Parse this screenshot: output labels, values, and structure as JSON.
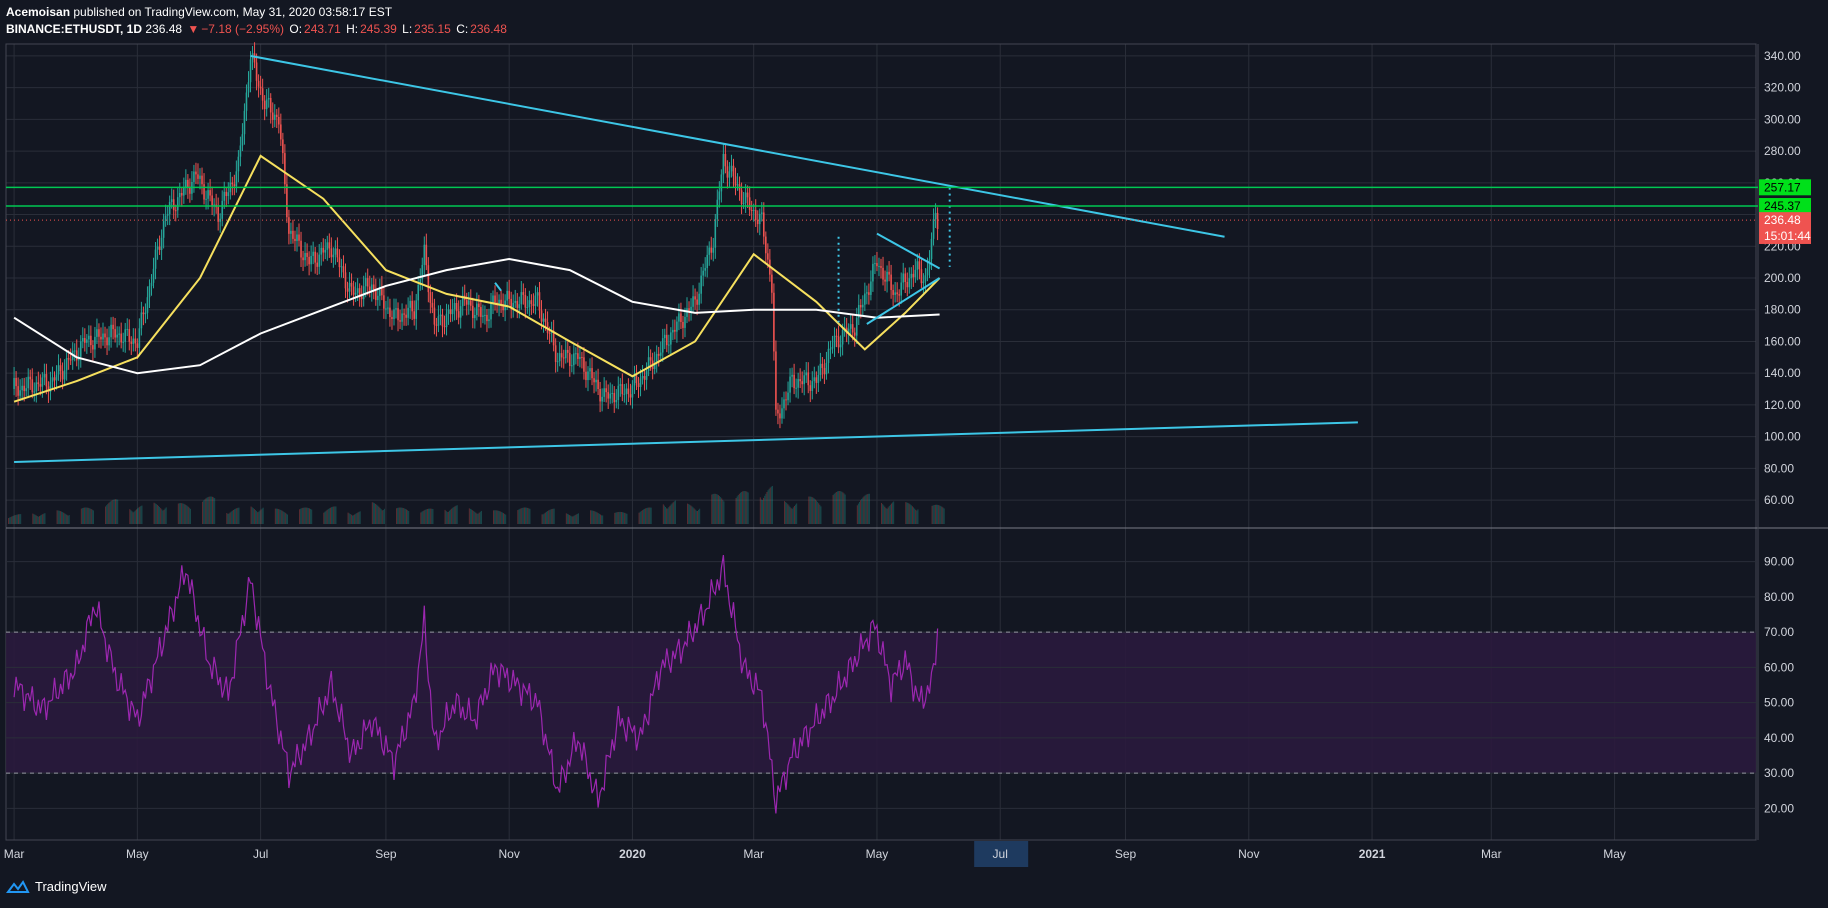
{
  "header": {
    "publisher": "Acemoisan",
    "published_text": "published on TradingView.com, May 31, 2020 03:58:17 EST",
    "symbol": "BINANCE:ETHUSDT, 1D",
    "last": "236.48",
    "change": "−7.18 (−2.95%)",
    "open_label": "O:",
    "open": "243.71",
    "high_label": "H:",
    "high": "245.39",
    "low_label": "L:",
    "low": "235.15",
    "close_label": "C:",
    "close": "236.48"
  },
  "footer": {
    "brand": "TradingView"
  },
  "colors": {
    "background": "#131722",
    "grid": "#2a2e39",
    "up": "#26a69a",
    "down": "#ef5350",
    "trendline": "#3dc6e6",
    "ma_yellow": "#f6e05e",
    "ma_white": "#ffffff",
    "green_level": "#00c853",
    "rsi": "#9c27b0",
    "rsi_band": "#2a1a3d"
  },
  "chart_data": [
    {
      "type": "candlestick",
      "title": "",
      "x_ticks": [
        "Mar",
        "May",
        "Jul",
        "Sep",
        "Nov",
        "2020",
        "Mar",
        "May",
        "Jul",
        "Sep",
        "Nov",
        "2021",
        "Mar",
        "May"
      ],
      "x_ticks_bold": [
        "2020",
        "2021"
      ],
      "y_ticks": [
        "340.00",
        "320.00",
        "300.00",
        "280.00",
        "260.00",
        "240.00",
        "220.00",
        "200.00",
        "180.00",
        "160.00",
        "140.00",
        "120.00",
        "100.00",
        "80.00",
        "60.00"
      ],
      "ylim": [
        55,
        345
      ],
      "price_badges": [
        {
          "label": "257.17",
          "value": 257.17,
          "color": "#00e01a",
          "text_color": "#000000"
        },
        {
          "label": "245.37",
          "value": 245.37,
          "color": "#00e01a",
          "text_color": "#000000"
        },
        {
          "label": "236.48",
          "value": 236.48,
          "color": "#ef5350",
          "text_color": "#ffffff"
        },
        {
          "label": "15:01:44",
          "value": 226.5,
          "color": "#ef5350",
          "text_color": "#ffffff"
        }
      ],
      "horizontal_levels": [
        257.17,
        245.37
      ],
      "last_price_line": 236.48,
      "price_path": [
        [
          "2019-03-01",
          130
        ],
        [
          "2019-03-20",
          135
        ],
        [
          "2019-04-05",
          160
        ],
        [
          "2019-04-20",
          165
        ],
        [
          "2019-05-01",
          160
        ],
        [
          "2019-05-15",
          240
        ],
        [
          "2019-05-30",
          265
        ],
        [
          "2019-06-10",
          240
        ],
        [
          "2019-06-20",
          270
        ],
        [
          "2019-06-26",
          340
        ],
        [
          "2019-07-03",
          310
        ],
        [
          "2019-07-10",
          300
        ],
        [
          "2019-07-15",
          230
        ],
        [
          "2019-07-25",
          210
        ],
        [
          "2019-08-05",
          220
        ],
        [
          "2019-08-15",
          190
        ],
        [
          "2019-08-25",
          195
        ],
        [
          "2019-09-05",
          175
        ],
        [
          "2019-09-15",
          180
        ],
        [
          "2019-09-20",
          215
        ],
        [
          "2019-09-25",
          170
        ],
        [
          "2019-10-10",
          185
        ],
        [
          "2019-10-20",
          175
        ],
        [
          "2019-10-25",
          185
        ],
        [
          "2019-11-05",
          185
        ],
        [
          "2019-11-15",
          185
        ],
        [
          "2019-11-25",
          150
        ],
        [
          "2019-12-05",
          150
        ],
        [
          "2019-12-18",
          125
        ],
        [
          "2020-01-01",
          130
        ],
        [
          "2020-01-10",
          145
        ],
        [
          "2020-01-20",
          165
        ],
        [
          "2020-02-01",
          185
        ],
        [
          "2020-02-10",
          225
        ],
        [
          "2020-02-15",
          275
        ],
        [
          "2020-02-25",
          250
        ],
        [
          "2020-03-05",
          235
        ],
        [
          "2020-03-10",
          195
        ],
        [
          "2020-03-12",
          110
        ],
        [
          "2020-03-20",
          135
        ],
        [
          "2020-04-01",
          135
        ],
        [
          "2020-04-10",
          160
        ],
        [
          "2020-04-20",
          170
        ],
        [
          "2020-05-01",
          210
        ],
        [
          "2020-05-10",
          190
        ],
        [
          "2020-05-20",
          205
        ],
        [
          "2020-05-25",
          200
        ],
        [
          "2020-05-28",
          220
        ],
        [
          "2020-05-30",
          245
        ],
        [
          "2020-05-31",
          236.48
        ]
      ],
      "series": [
        {
          "name": "",
          "color": "#f6e05e",
          "values": [
            [
              "2019-03-01",
              122
            ],
            [
              "2019-04-01",
              135
            ],
            [
              "2019-05-01",
              150
            ],
            [
              "2019-06-01",
              200
            ],
            [
              "2019-07-01",
              277
            ],
            [
              "2019-08-01",
              250
            ],
            [
              "2019-09-01",
              205
            ],
            [
              "2019-10-01",
              190
            ],
            [
              "2019-11-01",
              182
            ],
            [
              "2019-12-01",
              160
            ],
            [
              "2020-01-01",
              138
            ],
            [
              "2020-02-01",
              160
            ],
            [
              "2020-03-01",
              215
            ],
            [
              "2020-04-01",
              185
            ],
            [
              "2020-04-25",
              155
            ],
            [
              "2020-05-15",
              178
            ],
            [
              "2020-06-01",
              200
            ]
          ]
        },
        {
          "name": "",
          "color": "#ffffff",
          "values": [
            [
              "2019-03-01",
              175
            ],
            [
              "2019-04-01",
              150
            ],
            [
              "2019-05-01",
              140
            ],
            [
              "2019-06-01",
              145
            ],
            [
              "2019-07-01",
              165
            ],
            [
              "2019-08-01",
              180
            ],
            [
              "2019-09-01",
              195
            ],
            [
              "2019-10-01",
              205
            ],
            [
              "2019-11-01",
              212
            ],
            [
              "2019-12-01",
              205
            ],
            [
              "2020-01-01",
              185
            ],
            [
              "2020-02-01",
              178
            ],
            [
              "2020-03-01",
              180
            ],
            [
              "2020-04-01",
              180
            ],
            [
              "2020-05-01",
              175
            ],
            [
              "2020-06-01",
              177
            ]
          ]
        }
      ],
      "trendlines": [
        {
          "from": [
            "2019-06-26",
            340
          ],
          "to": [
            "2020-10-20",
            226
          ]
        },
        {
          "from": [
            "2019-03-01",
            84
          ],
          "to": [
            "2020-12-25",
            109
          ]
        },
        {
          "from": [
            "2020-04-26",
            171
          ],
          "to": [
            "2020-06-01",
            200
          ]
        },
        {
          "from": [
            "2020-05-01",
            228
          ],
          "to": [
            "2020-06-01",
            206
          ]
        },
        {
          "from": [
            "2019-10-25",
            197
          ],
          "to": [
            "2019-10-28",
            192
          ]
        }
      ],
      "dotted_projections": [
        {
          "from": [
            "2020-04-12",
            226
          ],
          "to": [
            "2020-04-12",
            172
          ]
        },
        {
          "from": [
            "2020-06-06",
            257
          ],
          "to": [
            "2020-06-06",
            207
          ]
        }
      ],
      "volume_path": [
        18,
        22,
        25,
        30,
        45,
        35,
        40,
        38,
        50,
        30,
        35,
        28,
        30,
        32,
        25,
        40,
        30,
        28,
        35,
        30,
        25,
        30,
        28,
        22,
        25,
        22,
        30,
        45,
        38,
        55,
        60,
        70,
        45,
        50,
        60,
        55,
        45,
        40,
        35
      ]
    },
    {
      "type": "line",
      "title": "",
      "y_ticks": [
        "90.00",
        "80.00",
        "70.00",
        "60.00",
        "50.00",
        "40.00",
        "30.00",
        "20.00"
      ],
      "ylim": [
        15,
        95
      ],
      "band": [
        30,
        70
      ],
      "series": [
        {
          "name": "",
          "color": "#9c27b0",
          "values": [
            [
              "2019-03-01",
              55
            ],
            [
              "2019-03-15",
              48
            ],
            [
              "2019-04-01",
              60
            ],
            [
              "2019-04-10",
              78
            ],
            [
              "2019-04-20",
              58
            ],
            [
              "2019-05-01",
              45
            ],
            [
              "2019-05-15",
              70
            ],
            [
              "2019-05-25",
              88
            ],
            [
              "2019-06-05",
              62
            ],
            [
              "2019-06-15",
              52
            ],
            [
              "2019-06-26",
              85
            ],
            [
              "2019-07-05",
              55
            ],
            [
              "2019-07-15",
              30
            ],
            [
              "2019-07-25",
              40
            ],
            [
              "2019-08-05",
              55
            ],
            [
              "2019-08-15",
              35
            ],
            [
              "2019-08-25",
              45
            ],
            [
              "2019-09-05",
              33
            ],
            [
              "2019-09-15",
              50
            ],
            [
              "2019-09-20",
              73
            ],
            [
              "2019-09-25",
              38
            ],
            [
              "2019-10-05",
              50
            ],
            [
              "2019-10-15",
              45
            ],
            [
              "2019-10-25",
              60
            ],
            [
              "2019-11-05",
              55
            ],
            [
              "2019-11-15",
              50
            ],
            [
              "2019-11-25",
              25
            ],
            [
              "2019-12-05",
              40
            ],
            [
              "2019-12-15",
              22
            ],
            [
              "2019-12-25",
              45
            ],
            [
              "2020-01-05",
              40
            ],
            [
              "2020-01-15",
              60
            ],
            [
              "2020-01-25",
              65
            ],
            [
              "2020-02-05",
              75
            ],
            [
              "2020-02-15",
              88
            ],
            [
              "2020-02-25",
              60
            ],
            [
              "2020-03-05",
              52
            ],
            [
              "2020-03-12",
              22
            ],
            [
              "2020-03-20",
              35
            ],
            [
              "2020-04-01",
              45
            ],
            [
              "2020-04-10",
              52
            ],
            [
              "2020-04-20",
              62
            ],
            [
              "2020-04-30",
              72
            ],
            [
              "2020-05-08",
              55
            ],
            [
              "2020-05-15",
              62
            ],
            [
              "2020-05-22",
              50
            ],
            [
              "2020-05-28",
              55
            ],
            [
              "2020-05-31",
              70
            ]
          ]
        }
      ]
    }
  ]
}
